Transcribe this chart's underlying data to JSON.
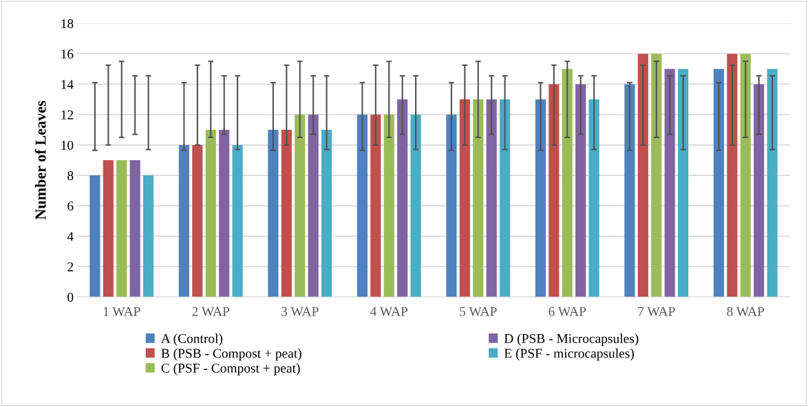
{
  "chart_data": {
    "type": "bar",
    "ylabel": "Number of Leaves",
    "categories": [
      "1 WAP",
      "2 WAP",
      "3 WAP",
      "4 WAP",
      "5 WAP",
      "6 WAP",
      "7 WAP",
      "8 WAP"
    ],
    "series": [
      {
        "name": "A (Control)",
        "color": "#4f81bd",
        "values": [
          8,
          10,
          11,
          12,
          12,
          13,
          14,
          15
        ],
        "errors": [
          [
            9.65,
            14.1
          ],
          [
            9.65,
            14.1
          ],
          [
            9.65,
            14.1
          ],
          [
            9.65,
            14.1
          ],
          [
            9.65,
            14.1
          ],
          [
            9.65,
            14.1
          ],
          [
            9.65,
            14.1
          ],
          [
            9.65,
            14.1
          ]
        ]
      },
      {
        "name": "B (PSB - Compost + peat)",
        "color": "#c0504d",
        "values": [
          9,
          10,
          11,
          12,
          13,
          14,
          16,
          16
        ],
        "errors": [
          [
            10,
            15.25
          ],
          [
            10,
            15.25
          ],
          [
            10,
            15.25
          ],
          [
            10,
            15.25
          ],
          [
            10,
            15.25
          ],
          [
            10,
            15.25
          ],
          [
            10,
            15.25
          ],
          [
            10,
            15.25
          ]
        ]
      },
      {
        "name": "C (PSF - Compost + peat)",
        "color": "#9bbb59",
        "values": [
          9,
          11,
          12,
          12,
          13,
          15,
          16,
          16
        ],
        "errors": [
          [
            10.5,
            15.5
          ],
          [
            10.5,
            15.5
          ],
          [
            10.5,
            15.5
          ],
          [
            10.5,
            15.5
          ],
          [
            10.5,
            15.5
          ],
          [
            10.5,
            15.5
          ],
          [
            10.5,
            15.5
          ],
          [
            10.5,
            15.5
          ]
        ]
      },
      {
        "name": "D (PSB - Microcapsules)",
        "color": "#8064a2",
        "values": [
          9,
          11,
          12,
          13,
          13,
          14,
          15,
          14
        ],
        "errors": [
          [
            10.7,
            14.55
          ],
          [
            10.7,
            14.55
          ],
          [
            10.7,
            14.55
          ],
          [
            10.7,
            14.55
          ],
          [
            10.7,
            14.55
          ],
          [
            10.7,
            14.55
          ],
          [
            10.7,
            14.55
          ],
          [
            10.7,
            14.55
          ]
        ]
      },
      {
        "name": "E (PSF - microcapsules)",
        "color": "#4bacc6",
        "values": [
          8,
          10,
          11,
          12,
          13,
          13,
          15,
          15
        ],
        "errors": [
          [
            9.7,
            14.55
          ],
          [
            9.7,
            14.55
          ],
          [
            9.7,
            14.55
          ],
          [
            9.7,
            14.55
          ],
          [
            9.7,
            14.55
          ],
          [
            9.7,
            14.55
          ],
          [
            9.7,
            14.55
          ],
          [
            9.7,
            14.55
          ]
        ]
      }
    ],
    "ylim": [
      0,
      18
    ],
    "yticks": [
      0,
      2,
      4,
      6,
      8,
      10,
      12,
      14,
      16,
      18
    ],
    "grid": "y",
    "legend": "bottom"
  }
}
